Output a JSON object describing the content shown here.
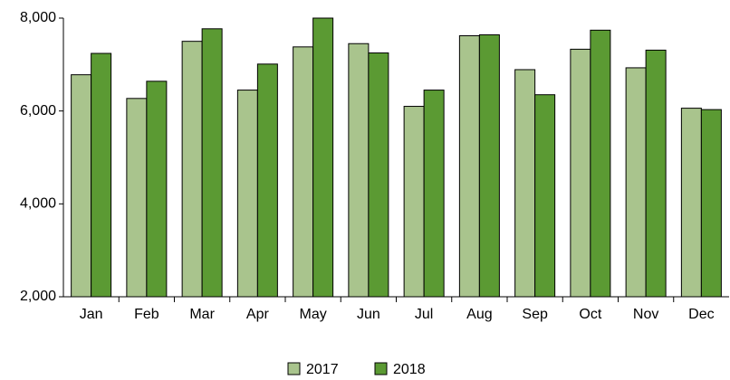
{
  "chart_data": {
    "type": "bar",
    "categories": [
      "Jan",
      "Feb",
      "Mar",
      "Apr",
      "May",
      "Jun",
      "Jul",
      "Aug",
      "Sep",
      "Oct",
      "Nov",
      "Dec"
    ],
    "series": [
      {
        "name": "2017",
        "color": "#a9c48d",
        "values": [
          6780,
          6270,
          7500,
          6450,
          7380,
          7450,
          6100,
          7620,
          6890,
          7330,
          6930,
          6060
        ]
      },
      {
        "name": "2018",
        "color": "#5b9a33",
        "values": [
          7240,
          6640,
          7770,
          7010,
          8000,
          7250,
          6450,
          7640,
          6350,
          7740,
          7310,
          6030
        ]
      }
    ],
    "ylim": [
      2000,
      8000
    ],
    "yticks": [
      {
        "value": 2000,
        "label": "2,000"
      },
      {
        "value": 4000,
        "label": "4,000"
      },
      {
        "value": 6000,
        "label": "6,000"
      },
      {
        "value": 8000,
        "label": "8,000"
      }
    ],
    "legend": "bottom"
  }
}
